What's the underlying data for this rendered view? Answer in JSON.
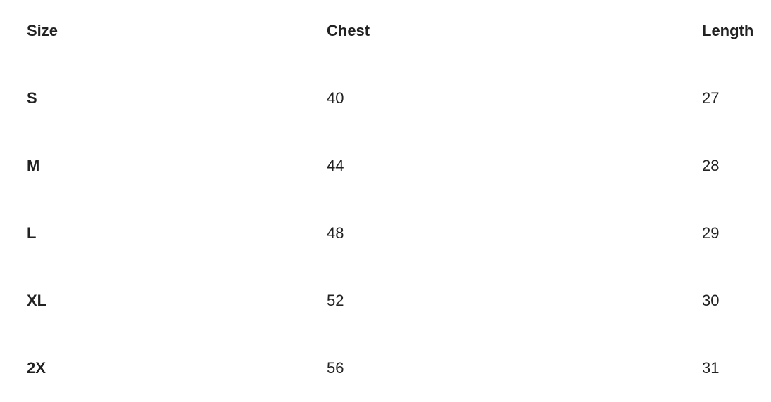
{
  "table": {
    "headers": [
      "Size",
      "Chest",
      "Length"
    ],
    "rows": [
      [
        "S",
        "40",
        "27"
      ],
      [
        "M",
        "44",
        "28"
      ],
      [
        "L",
        "48",
        "29"
      ],
      [
        "XL",
        "52",
        "30"
      ],
      [
        "2X",
        "56",
        "31"
      ]
    ]
  }
}
